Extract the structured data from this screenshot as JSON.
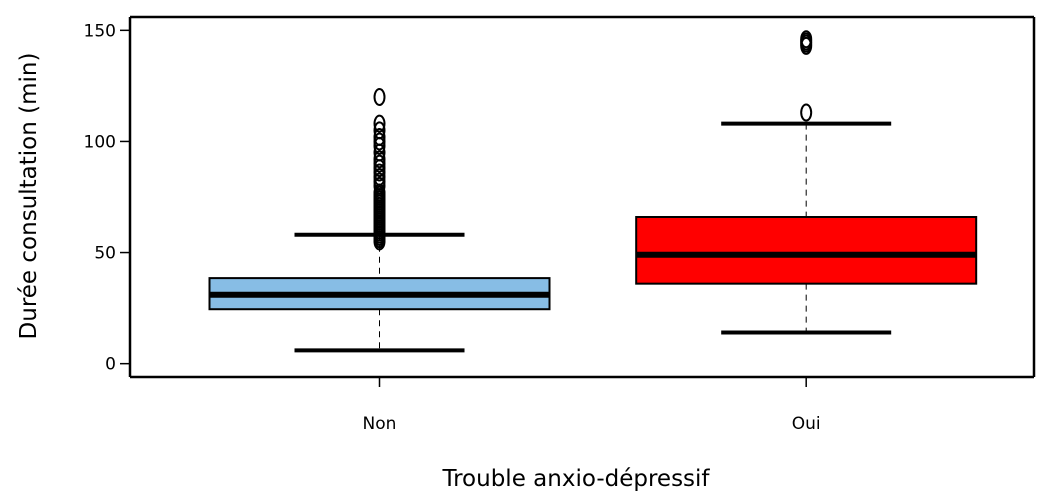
{
  "chart_data": {
    "type": "boxplot",
    "xlabel": "Trouble anxio-dépressif",
    "ylabel": "Durée consultation (min)",
    "ylim": [
      -6,
      156
    ],
    "yticks": [
      0,
      50,
      100,
      150
    ],
    "categories": [
      "Non",
      "Oui"
    ],
    "boxes": [
      {
        "category": "Non",
        "color": "#87BDE5",
        "whisker_low": 6,
        "q1": 24.5,
        "median": 31,
        "q3": 38.5,
        "whisker_high": 58,
        "outliers": [
          55,
          56,
          57,
          58,
          59,
          60,
          61,
          62,
          63,
          64,
          65,
          66,
          67,
          68,
          69,
          70,
          71,
          72,
          73,
          74,
          75,
          76,
          77,
          80,
          82,
          84,
          86,
          88,
          90,
          92,
          95,
          98,
          100,
          102,
          105,
          108,
          120
        ]
      },
      {
        "category": "Oui",
        "color": "#FF0000",
        "whisker_low": 14,
        "q1": 36,
        "median": 49,
        "q3": 66,
        "whisker_high": 108,
        "outliers": [
          113,
          143,
          144,
          145,
          146
        ]
      }
    ],
    "grid": false,
    "legend": "none"
  }
}
